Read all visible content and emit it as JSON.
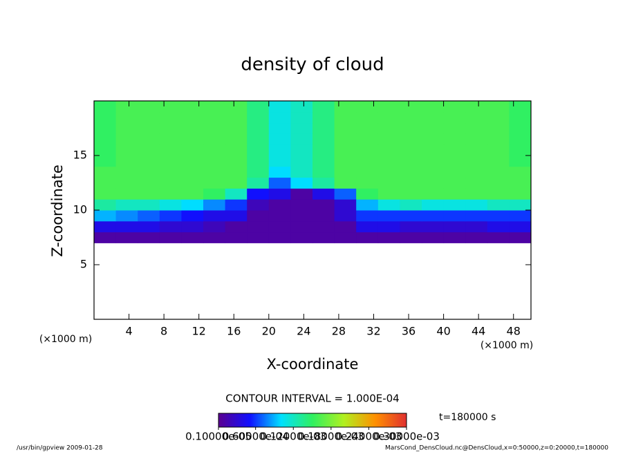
{
  "chart_data": {
    "type": "contour",
    "title": "density of cloud",
    "x_label": "X-coordinate",
    "y_label": "Z-coordinate",
    "x_unit": "(×1000 m)",
    "y_unit": "(×1000 m)",
    "xlim": [
      0,
      50
    ],
    "ylim": [
      0,
      20
    ],
    "xticks": [
      4,
      8,
      12,
      16,
      20,
      24,
      28,
      32,
      36,
      40,
      44,
      48
    ],
    "yticks": [
      5,
      10,
      15
    ],
    "x_edges": [
      0,
      2.5,
      5,
      7.5,
      10,
      12.5,
      15,
      17.5,
      20,
      22.5,
      25,
      27.5,
      30,
      32.5,
      35,
      37.5,
      40,
      42.5,
      45,
      47.5,
      50
    ],
    "z_edges": [
      7,
      8,
      9,
      10,
      11,
      12,
      13,
      14,
      15,
      16,
      17,
      18,
      19,
      20
    ],
    "values": [
      [
        1e-05,
        1e-05,
        1e-05,
        1e-05,
        1e-05,
        1e-05,
        1e-05,
        1e-05,
        1e-05,
        1e-05,
        1e-05,
        1e-05,
        1e-05,
        1e-05,
        1e-05,
        1e-05,
        1e-05,
        1e-05,
        1e-05,
        1e-05
      ],
      [
        4e-05,
        4e-05,
        4e-05,
        3e-05,
        3e-05,
        2e-05,
        1e-05,
        1e-05,
        1e-05,
        1e-05,
        1e-05,
        1e-05,
        4e-05,
        4e-05,
        3e-05,
        3e-05,
        3e-05,
        3e-05,
        4e-05,
        4e-05
      ],
      [
        9e-05,
        8e-05,
        7e-05,
        6e-05,
        5e-05,
        4e-05,
        4e-05,
        1e-05,
        1e-05,
        1e-05,
        1e-05,
        3e-05,
        6e-05,
        6e-05,
        6e-05,
        6e-05,
        6e-05,
        6e-05,
        6e-05,
        6e-05
      ],
      [
        0.00013,
        0.00012,
        0.00012,
        0.00011,
        0.0001,
        8e-05,
        6e-05,
        2e-05,
        1e-05,
        1e-05,
        1e-05,
        3e-05,
        9e-05,
        0.00011,
        0.00012,
        0.00011,
        0.00011,
        0.00011,
        0.00012,
        0.00012
      ],
      [
        0.00016,
        0.00016,
        0.00016,
        0.00016,
        0.00016,
        0.00015,
        0.00012,
        5e-05,
        4e-05,
        1e-05,
        4e-05,
        7e-05,
        0.00015,
        0.00016,
        0.00016,
        0.00016,
        0.00016,
        0.00016,
        0.00016,
        0.00016
      ],
      [
        0.00016,
        0.00016,
        0.00016,
        0.00016,
        0.00016,
        0.00016,
        0.00016,
        0.00013,
        7e-05,
        0.0001,
        0.00013,
        0.00016,
        0.00016,
        0.00016,
        0.00016,
        0.00016,
        0.00016,
        0.00016,
        0.00016,
        0.00016
      ],
      [
        0.00016,
        0.00016,
        0.00016,
        0.00016,
        0.00016,
        0.00016,
        0.00016,
        0.00014,
        0.0001,
        0.00012,
        0.00014,
        0.00016,
        0.00016,
        0.00016,
        0.00016,
        0.00016,
        0.00016,
        0.00016,
        0.00016,
        0.00016
      ],
      [
        0.00015,
        0.00016,
        0.00016,
        0.00016,
        0.00016,
        0.00016,
        0.00016,
        0.00014,
        0.00011,
        0.00012,
        0.00014,
        0.00016,
        0.00016,
        0.00016,
        0.00016,
        0.00016,
        0.00016,
        0.00016,
        0.00016,
        0.00015
      ],
      [
        0.00015,
        0.00016,
        0.00016,
        0.00016,
        0.00016,
        0.00016,
        0.00016,
        0.00014,
        0.00011,
        0.00012,
        0.00014,
        0.00016,
        0.00016,
        0.00016,
        0.00016,
        0.00016,
        0.00016,
        0.00016,
        0.00016,
        0.00015
      ],
      [
        0.00015,
        0.00016,
        0.00016,
        0.00016,
        0.00016,
        0.00016,
        0.00016,
        0.00014,
        0.00011,
        0.00012,
        0.00014,
        0.00016,
        0.00016,
        0.00016,
        0.00016,
        0.00016,
        0.00016,
        0.00016,
        0.00016,
        0.00015
      ],
      [
        0.00015,
        0.00016,
        0.00016,
        0.00016,
        0.00016,
        0.00016,
        0.00016,
        0.00014,
        0.00011,
        0.00012,
        0.00014,
        0.00016,
        0.00016,
        0.00016,
        0.00016,
        0.00016,
        0.00016,
        0.00016,
        0.00016,
        0.00015
      ],
      [
        0.00015,
        0.00016,
        0.00016,
        0.00016,
        0.00016,
        0.00016,
        0.00016,
        0.00014,
        0.00011,
        0.00012,
        0.00014,
        0.00016,
        0.00016,
        0.00016,
        0.00016,
        0.00016,
        0.00016,
        0.00016,
        0.00016,
        0.00015
      ],
      [
        0.00015,
        0.00016,
        0.00016,
        0.00016,
        0.00016,
        0.00016,
        0.00016,
        0.00014,
        0.00011,
        0.00012,
        0.00014,
        0.00016,
        0.00016,
        0.00016,
        0.00016,
        0.00016,
        0.00016,
        0.00016,
        0.00016,
        0.00015
      ]
    ],
    "colormap": [
      "#5a0090",
      "#1010ff",
      "#00e0ff",
      "#30f060",
      "#b0f020",
      "#ff9000",
      "#e03030"
    ],
    "clim": [
      1e-06,
      0.0003
    ],
    "contour_interval": "CONTOUR INTERVAL = 1.000E-04",
    "colorbar_ticks": [
      {
        "value": 1e-06,
        "label": "0.10000e-05"
      },
      {
        "value": 6e-05,
        "label": "0.60000e-04"
      },
      {
        "value": 0.00012,
        "label": "0.12000e-03"
      },
      {
        "value": 0.00018,
        "label": "0.18000e-03"
      },
      {
        "value": 0.00024,
        "label": "0.24000e-03"
      },
      {
        "value": 0.0003,
        "label": "0.30000e-03"
      }
    ],
    "time_label": "t=180000 s",
    "footer_left": "/usr/bin/gpview  2009-01-28",
    "footer_right": "MarsCond_DensCloud.nc@DensCloud,x=0:50000,z=0:20000,t=180000"
  }
}
